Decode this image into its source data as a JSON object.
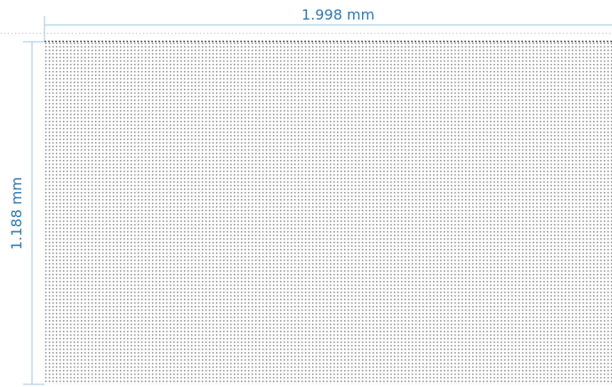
{
  "dimensions": {
    "width_label": "1.998 mm",
    "height_label": "1.188 mm"
  }
}
